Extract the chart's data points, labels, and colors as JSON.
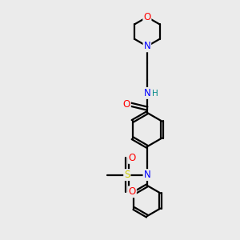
{
  "background_color": "#ebebeb",
  "bond_color": "#000000",
  "atom_colors": {
    "O": "#ff0000",
    "N": "#0000ff",
    "S": "#cccc00",
    "NH": "#008080",
    "C": "#000000"
  },
  "figsize": [
    3.0,
    3.0
  ],
  "dpi": 100
}
